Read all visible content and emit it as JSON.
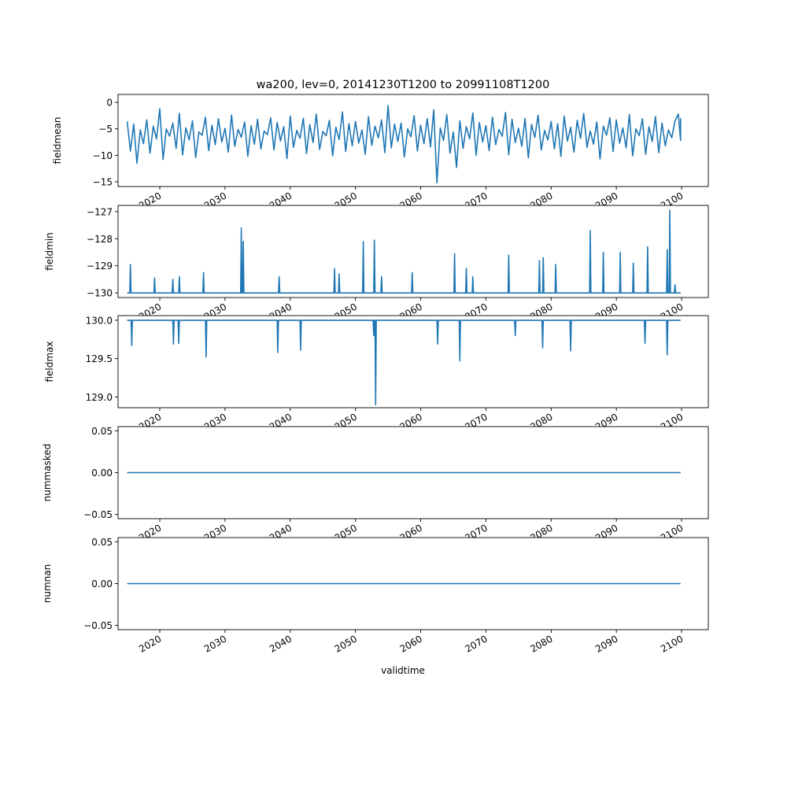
{
  "chart_data": {
    "type": "line",
    "title": "wa200, lev=0, 20141230T1200 to 20991108T1200",
    "xlabel": "validtime",
    "xlim": [
      2013.6,
      2104.1
    ],
    "xticks": [
      2020,
      2030,
      2040,
      2050,
      2060,
      2070,
      2080,
      2090,
      2100
    ],
    "xtick_labels": [
      "2020",
      "2030",
      "2040",
      "2050",
      "2060",
      "2070",
      "2080",
      "2090",
      "2100"
    ],
    "line_color": "#1f77b4",
    "panels": [
      {
        "ylabel": "fieldmean",
        "ylim": [
          -15.9,
          1.5
        ],
        "yticks": [
          0,
          -5,
          -10,
          -15
        ],
        "ytick_labels": [
          "0",
          "−5",
          "−10",
          "−15"
        ],
        "x_start": 2015.0,
        "x_step": 0.5,
        "x_end": 2099.85,
        "values": [
          -3.6,
          -9.2,
          -4.1,
          -11.5,
          -5.2,
          -7.8,
          -3.3,
          -9.6,
          -4.5,
          -6.9,
          -1.2,
          -10.8,
          -5.0,
          -6.4,
          -3.9,
          -8.7,
          -2.1,
          -9.9,
          -4.8,
          -7.1,
          -3.5,
          -10.4,
          -5.6,
          -6.2,
          -2.8,
          -9.1,
          -4.3,
          -8.0,
          -3.1,
          -7.5,
          -4.9,
          -9.4,
          -2.4,
          -8.3,
          -5.1,
          -6.6,
          -3.7,
          -10.2,
          -4.4,
          -7.9,
          -3.2,
          -8.8,
          -5.4,
          -6.1,
          -2.9,
          -9.0,
          -3.8,
          -7.3,
          -4.6,
          -10.6,
          -2.6,
          -8.5,
          -5.3,
          -6.8,
          -3.0,
          -9.7,
          -4.2,
          -7.6,
          -2.2,
          -8.9,
          -5.5,
          -6.3,
          -3.4,
          -10.1,
          -4.7,
          -7.0,
          -1.8,
          -9.3,
          -4.0,
          -8.2,
          -3.6,
          -7.7,
          -5.2,
          -9.8,
          -2.7,
          -8.1,
          -4.5,
          -6.7,
          -3.3,
          -9.5,
          -0.6,
          -8.6,
          -4.1,
          -7.4,
          -3.9,
          -10.3,
          -5.0,
          -6.5,
          -2.5,
          -9.2,
          -4.3,
          -7.8,
          -3.1,
          -8.4,
          -1.4,
          -15.2,
          -4.8,
          -7.2,
          -2.3,
          -9.6,
          -5.6,
          -12.3,
          -3.5,
          -8.7,
          -4.6,
          -6.9,
          -2.0,
          -10.0,
          -3.8,
          -7.5,
          -4.4,
          -9.1,
          -2.8,
          -8.0,
          -5.1,
          -6.4,
          -1.9,
          -9.9,
          -3.2,
          -7.6,
          -4.9,
          -8.3,
          -3.0,
          -10.5,
          -4.2,
          -6.6,
          -2.4,
          -9.0,
          -5.3,
          -7.1,
          -3.6,
          -8.8,
          -4.0,
          -10.2,
          -2.6,
          -7.3,
          -4.7,
          -9.4,
          -3.4,
          -6.8,
          -2.1,
          -8.5,
          -5.4,
          -7.9,
          -3.7,
          -10.7,
          -4.5,
          -6.2,
          -2.9,
          -9.3,
          -3.3,
          -7.7,
          -4.8,
          -8.6,
          -2.3,
          -10.1,
          -5.0,
          -6.3,
          -3.1,
          -9.8,
          -4.6,
          -7.4,
          -2.7,
          -9.5,
          -3.9,
          -8.2,
          -5.2,
          -6.7,
          -3.5,
          -2.2,
          -7.2,
          -3.0
        ],
        "tick_labels_hidden": false
      },
      {
        "ylabel": "fieldmin",
        "ylim": [
          -130.17,
          -126.77
        ],
        "yticks": [
          -127,
          -128,
          -129,
          -130
        ],
        "ytick_labels": [
          "−127",
          "−128",
          "−129",
          "−130"
        ],
        "baseline": -130.0,
        "x_start": 2015.0,
        "x_end": 2099.85,
        "spikes": [
          [
            2015.5,
            -128.95
          ],
          [
            2019.2,
            -129.45
          ],
          [
            2022.0,
            -129.5
          ],
          [
            2023.0,
            -129.4
          ],
          [
            2026.7,
            -129.25
          ],
          [
            2032.5,
            -127.6
          ],
          [
            2032.8,
            -128.1
          ],
          [
            2038.3,
            -129.4
          ],
          [
            2046.8,
            -129.1
          ],
          [
            2047.5,
            -129.3
          ],
          [
            2051.2,
            -128.1
          ],
          [
            2052.9,
            -128.05
          ],
          [
            2054.0,
            -129.4
          ],
          [
            2058.7,
            -129.25
          ],
          [
            2065.2,
            -128.55
          ],
          [
            2067.0,
            -129.1
          ],
          [
            2068.0,
            -129.4
          ],
          [
            2073.5,
            -128.6
          ],
          [
            2078.2,
            -128.8
          ],
          [
            2078.8,
            -128.7
          ],
          [
            2080.7,
            -128.95
          ],
          [
            2086.0,
            -127.7
          ],
          [
            2088.0,
            -128.5
          ],
          [
            2090.6,
            -128.5
          ],
          [
            2092.6,
            -128.9
          ],
          [
            2094.8,
            -128.3
          ],
          [
            2097.8,
            -128.4
          ],
          [
            2098.2,
            -126.95
          ],
          [
            2099.0,
            -129.7
          ]
        ]
      },
      {
        "ylabel": "fieldmax",
        "ylim": [
          128.86,
          130.06
        ],
        "yticks": [
          130.0,
          129.5,
          129.0
        ],
        "ytick_labels": [
          "130.0",
          "129.5",
          "129.0"
        ],
        "baseline": 130.0,
        "x_start": 2015.0,
        "x_end": 2099.85,
        "spikes": [
          [
            2015.7,
            129.67
          ],
          [
            2022.1,
            129.69
          ],
          [
            2022.9,
            129.7
          ],
          [
            2027.1,
            129.52
          ],
          [
            2038.1,
            129.58
          ],
          [
            2041.6,
            129.61
          ],
          [
            2052.8,
            129.8
          ],
          [
            2053.1,
            128.9
          ],
          [
            2062.6,
            129.69
          ],
          [
            2066.0,
            129.47
          ],
          [
            2074.5,
            129.8
          ],
          [
            2078.7,
            129.64
          ],
          [
            2083.0,
            129.6
          ],
          [
            2094.4,
            129.7
          ],
          [
            2097.8,
            129.55
          ]
        ]
      },
      {
        "ylabel": "nummasked",
        "ylim": [
          -0.055,
          0.055
        ],
        "yticks": [
          0.05,
          0.0,
          -0.05
        ],
        "ytick_labels": [
          "0.05",
          "0.00",
          "−0.05"
        ],
        "baseline": 0.0,
        "x_start": 2015.0,
        "x_end": 2099.85,
        "spikes": []
      },
      {
        "ylabel": "numnan",
        "ylim": [
          -0.055,
          0.055
        ],
        "yticks": [
          0.05,
          0.0,
          -0.05
        ],
        "ytick_labels": [
          "0.05",
          "0.00",
          "−0.05"
        ],
        "baseline": 0.0,
        "x_start": 2015.0,
        "x_end": 2099.85,
        "spikes": []
      }
    ]
  }
}
